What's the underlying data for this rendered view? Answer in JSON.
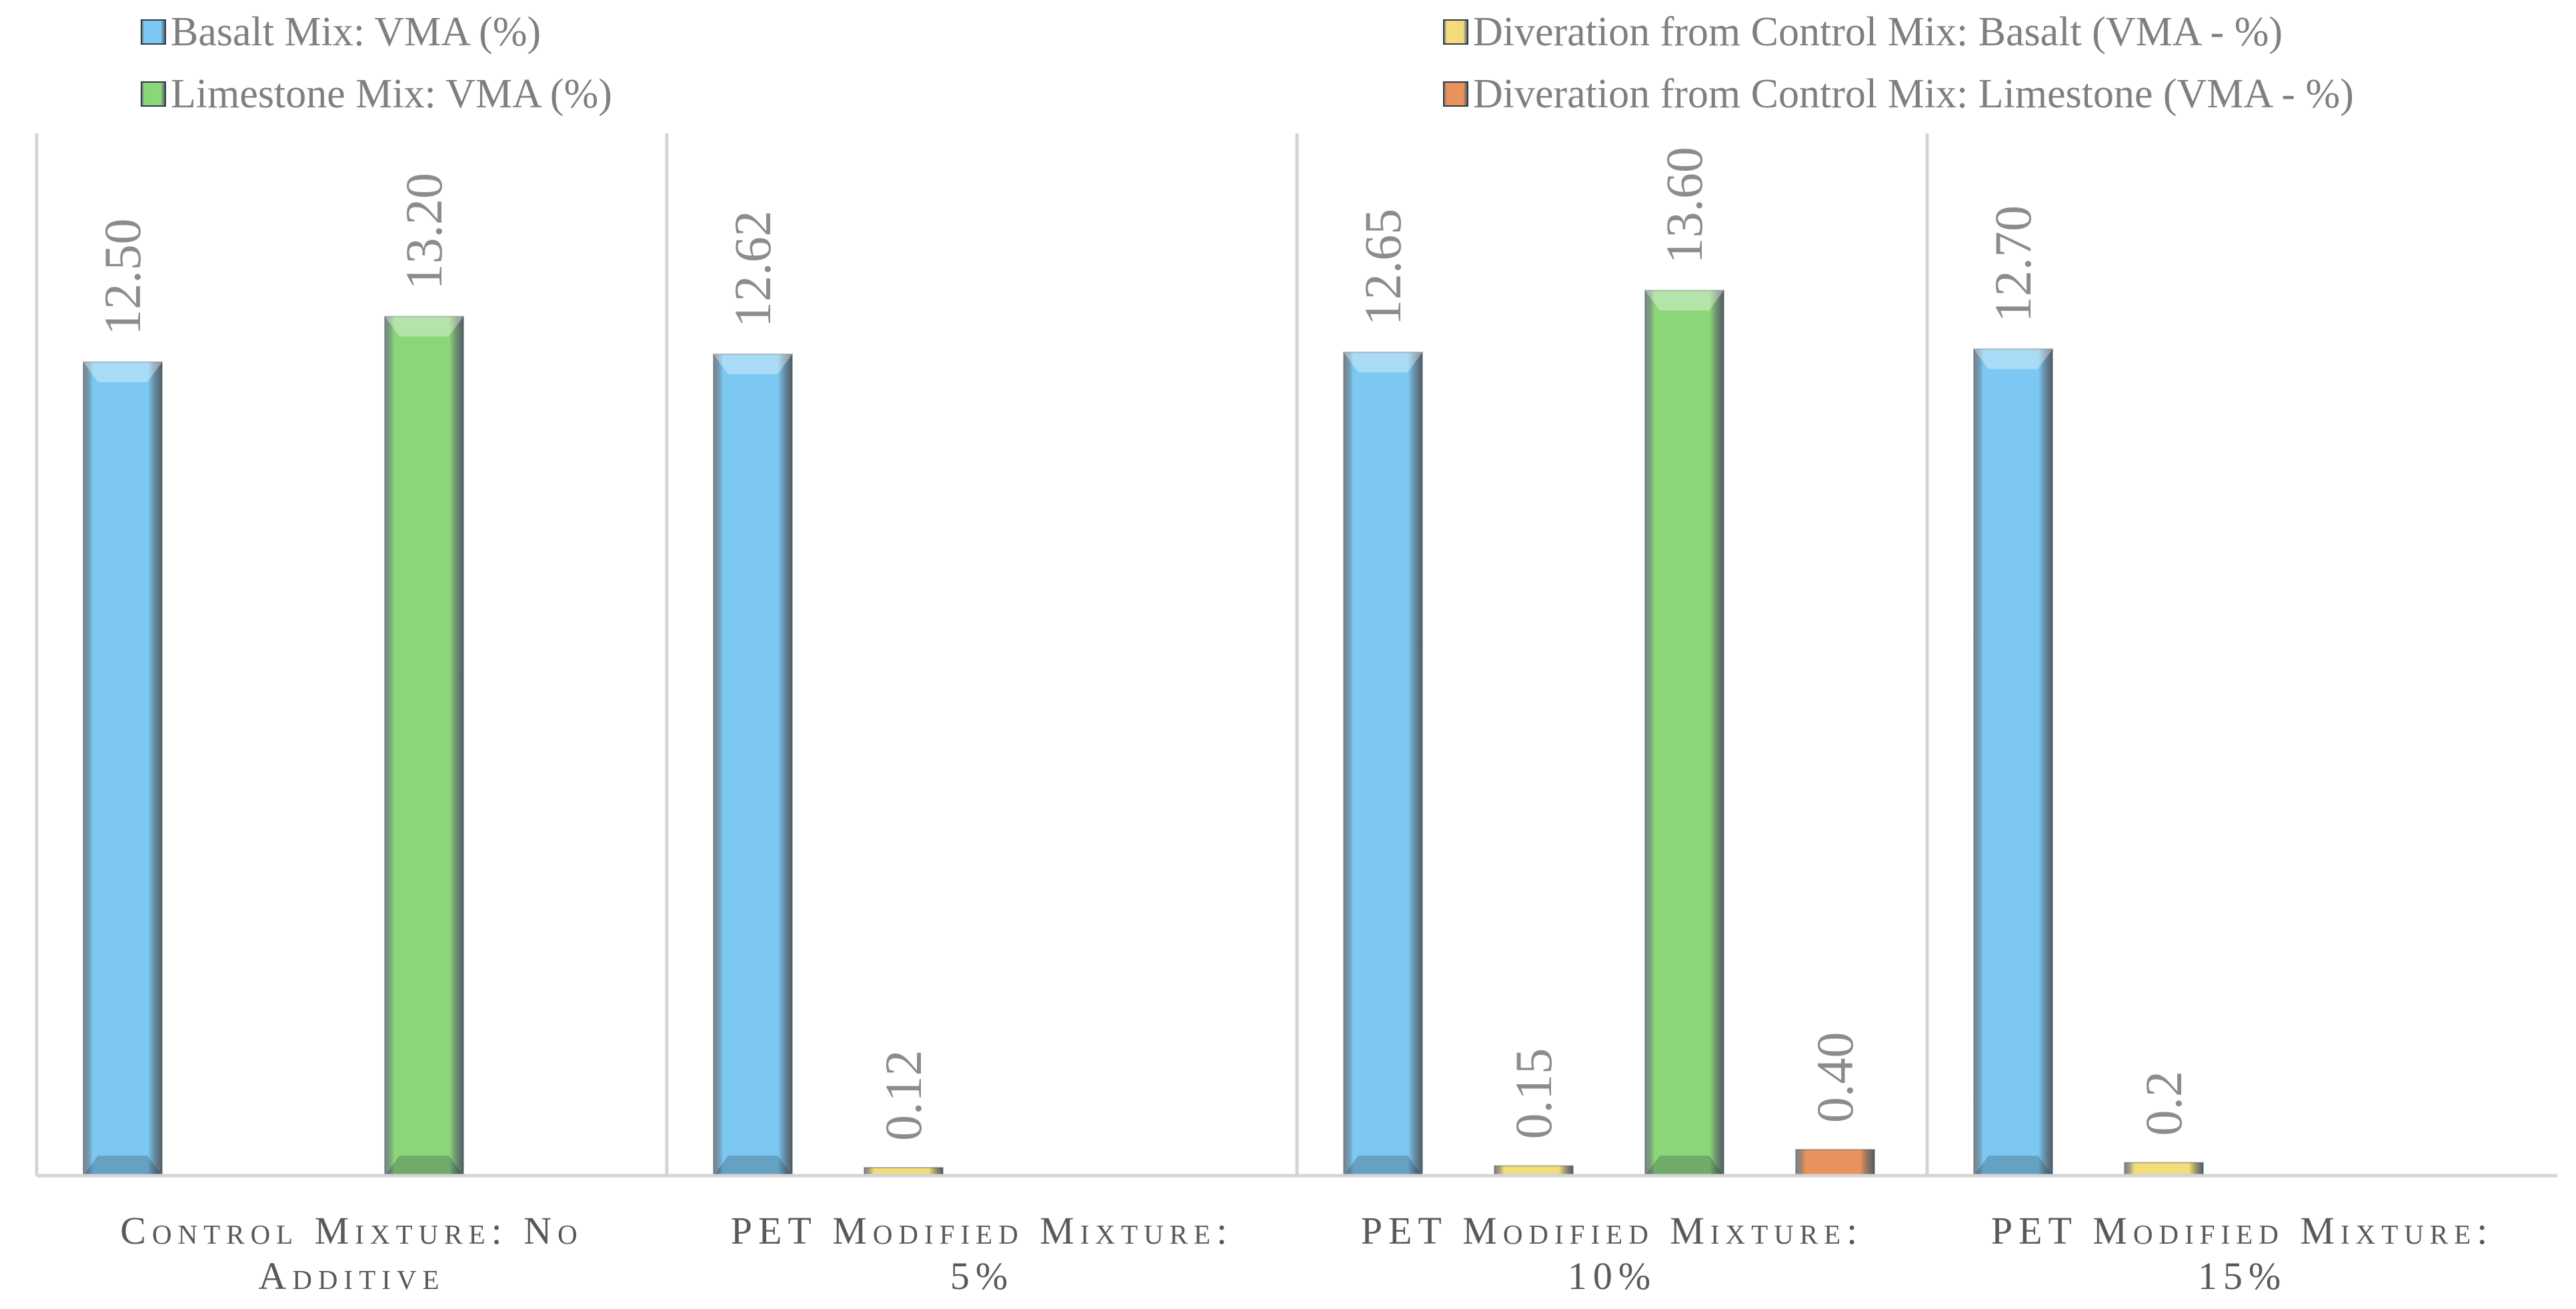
{
  "chart_data": {
    "type": "bar",
    "categories": [
      "Control Mixture: No Additive",
      "PET Modified Mixture: 5%",
      "PET Modified Mixture: 10%",
      "PET Modified Mixture: 15%"
    ],
    "category_label_lines": [
      [
        "Control Mixture: No",
        "Additive"
      ],
      [
        "PET   Modified Mixture:",
        "5%"
      ],
      [
        "PET   Modified Mixture:",
        "10%"
      ],
      [
        "PET   Modified Mixture:",
        "15%"
      ]
    ],
    "series": [
      {
        "name": "Basalt Mix:  VMA (%)",
        "color": "#7cc8f2",
        "values": [
          12.5,
          12.62,
          12.65,
          12.7
        ],
        "labels": [
          "12.50",
          "12.62",
          "12.65",
          "12.70"
        ]
      },
      {
        "name": "Diveration from Control Mix: Basalt  (VMA - %)",
        "color": "#f2dc7c",
        "values": [
          null,
          0.12,
          0.15,
          0.2
        ],
        "labels": [
          "",
          "0.12",
          "0.15",
          "0.2"
        ]
      },
      {
        "name": "Limestone Mix:  VMA (%)",
        "color": "#8cd67a",
        "values": [
          13.2,
          null,
          13.6,
          null
        ],
        "labels": [
          "13.20",
          "",
          "13.60",
          ""
        ]
      },
      {
        "name": "Diveration from Control Mix: Limestone  (VMA - %)",
        "color": "#e8935e",
        "values": [
          null,
          null,
          0.4,
          null
        ],
        "labels": [
          "",
          "",
          "0.40",
          ""
        ]
      }
    ],
    "legend": {
      "placement": "top",
      "left_column": [
        0,
        2
      ],
      "right_column": [
        1,
        3
      ]
    },
    "ylim": [
      0,
      16
    ],
    "grid": false,
    "title": "",
    "xlabel": "",
    "ylabel": ""
  }
}
